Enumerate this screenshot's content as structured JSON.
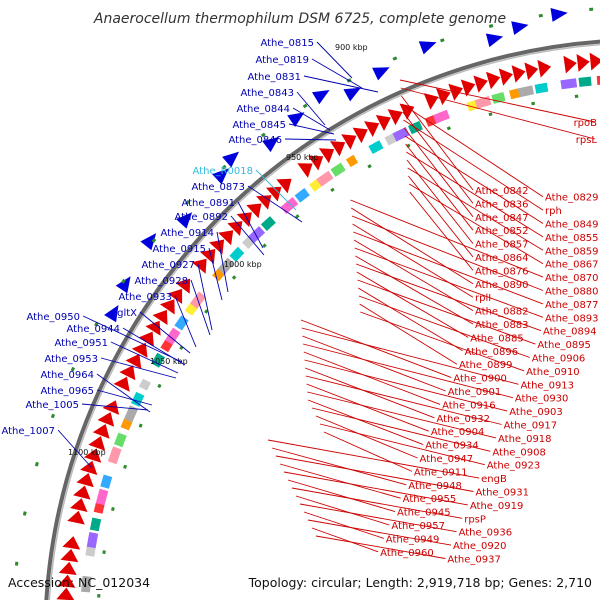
{
  "title": "Anaerocellum thermophilum DSM 6725, complete genome",
  "footer": {
    "accession": "Accession: NC_012034",
    "topology": "Topology: circular; Length: 2,919,718 bp; Genes: 2,710"
  },
  "colors": {
    "forward_gene": "#e00000",
    "reverse_gene": "#0000dd",
    "left_label": "#0000b0",
    "right_label": "#cc0000",
    "rna_label": "#33bbdd",
    "backbone": "#888888",
    "marker": "#2d8a2d"
  },
  "ticks": [
    "900 kbp",
    "950 kbp",
    "1000 kbp",
    "1050 kbp",
    "1100 kbp"
  ],
  "left_labels": [
    "Athe_0815",
    "Athe_0819",
    "Athe_0831",
    "Athe_0843",
    "Athe_0844",
    "Athe_0845",
    "Athe_0846",
    "Athe_R0018",
    "Athe_0873",
    "Athe_0891",
    "Athe_0892",
    "Athe_0914",
    "Athe_0915",
    "Athe_0927",
    "Athe_0928",
    "Athe_0933",
    "gltX",
    "Athe_0950",
    "Athe_0944",
    "Athe_0951",
    "Athe_0953",
    "Athe_0964",
    "Athe_0965",
    "Athe_1005",
    "Athe_1007"
  ],
  "right_labels": [
    "rpoB",
    "rpsL",
    "Athe_0842",
    "Athe_0829",
    "Athe_0836",
    "rph",
    "Athe_0847",
    "Athe_0849",
    "Athe_0852",
    "Athe_0855",
    "Athe_0857",
    "Athe_0859",
    "Athe_0864",
    "Athe_0867",
    "Athe_0876",
    "Athe_0870",
    "Athe_0890",
    "Athe_0880",
    "rplI",
    "Athe_0877",
    "Athe_0882",
    "Athe_0893",
    "Athe_0883",
    "Athe_0894",
    "Athe_0885",
    "Athe_0895",
    "Athe_0896",
    "Athe_0906",
    "Athe_0899",
    "Athe_0910",
    "Athe_0900",
    "Athe_0913",
    "Athe_0901",
    "Athe_0930",
    "Athe_0916",
    "Athe_0903",
    "Athe_0932",
    "Athe_0917",
    "Athe_0904",
    "Athe_0918",
    "Athe_0934",
    "Athe_0908",
    "Athe_0947",
    "Athe_0923",
    "Athe_0911",
    "engB",
    "Athe_0948",
    "Athe_0931",
    "Athe_0955",
    "Athe_0919",
    "Athe_0945",
    "rpsP",
    "Athe_0957",
    "Athe_0936",
    "Athe_0949",
    "Athe_0920",
    "Athe_0960",
    "Athe_0937"
  ]
}
